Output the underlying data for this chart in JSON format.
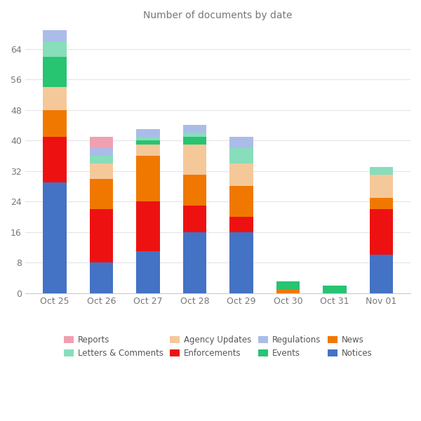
{
  "categories": [
    "Oct 25",
    "Oct 26",
    "Oct 27",
    "Oct 28",
    "Oct 29",
    "Oct 30",
    "Oct 31",
    "Nov 01"
  ],
  "title": "Number of documents by date",
  "series": {
    "Notices": [
      29,
      8,
      11,
      16,
      16,
      0,
      0,
      10
    ],
    "Enforcements": [
      12,
      14,
      13,
      7,
      4,
      0,
      0,
      12
    ],
    "News": [
      7,
      8,
      12,
      8,
      8,
      1,
      0,
      3
    ],
    "Agency Updates": [
      6,
      4,
      3,
      8,
      6,
      0,
      0,
      6
    ],
    "Events": [
      8,
      0,
      1,
      2,
      0,
      2,
      2,
      0
    ],
    "Letters & Comments": [
      4,
      2,
      1,
      1,
      4,
      0,
      0,
      2
    ],
    "Regulations": [
      3,
      2,
      2,
      2,
      3,
      0,
      0,
      0
    ],
    "Reports": [
      0,
      3,
      0,
      0,
      0,
      0,
      0,
      0
    ]
  },
  "colors": {
    "Notices": "#4472C4",
    "Enforcements": "#EE1111",
    "News": "#F07800",
    "Agency Updates": "#F5C89A",
    "Events": "#27C472",
    "Letters & Comments": "#88DDBB",
    "Regulations": "#AABCE8",
    "Reports": "#F0A0B0"
  },
  "legend_order": [
    "Reports",
    "Letters & Comments",
    "Agency Updates",
    "Enforcements",
    "Regulations",
    "Events",
    "News",
    "Notices"
  ],
  "ylim": [
    0,
    70
  ],
  "yticks": [
    0,
    8,
    16,
    24,
    32,
    40,
    48,
    56,
    64
  ],
  "figsize": [
    6.0,
    6.0
  ],
  "dpi": 100,
  "bar_width": 0.5
}
